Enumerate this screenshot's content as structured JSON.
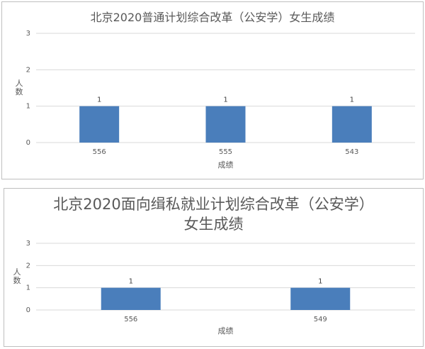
{
  "chart_data": [
    {
      "type": "bar",
      "title": "北京2020普通计划综合改革（公安学）女生成绩",
      "ylabel": "人数",
      "xlabel": "成绩",
      "categories": [
        "556",
        "555",
        "543"
      ],
      "values": [
        1,
        1,
        1
      ],
      "color": "#4a7ebb",
      "ylim": [
        0,
        3
      ],
      "yticks": [
        0,
        1,
        2,
        3
      ],
      "grid": true
    },
    {
      "type": "bar",
      "title": "北京2020面向缉私就业计划综合改革（公安学）女生成绩",
      "ylabel": "人数",
      "xlabel": "成绩",
      "categories": [
        "556",
        "549"
      ],
      "values": [
        1,
        1
      ],
      "color": "#4a7ebb",
      "ylim": [
        0,
        3
      ],
      "yticks": [
        0,
        1,
        2,
        3
      ],
      "grid": true
    }
  ]
}
